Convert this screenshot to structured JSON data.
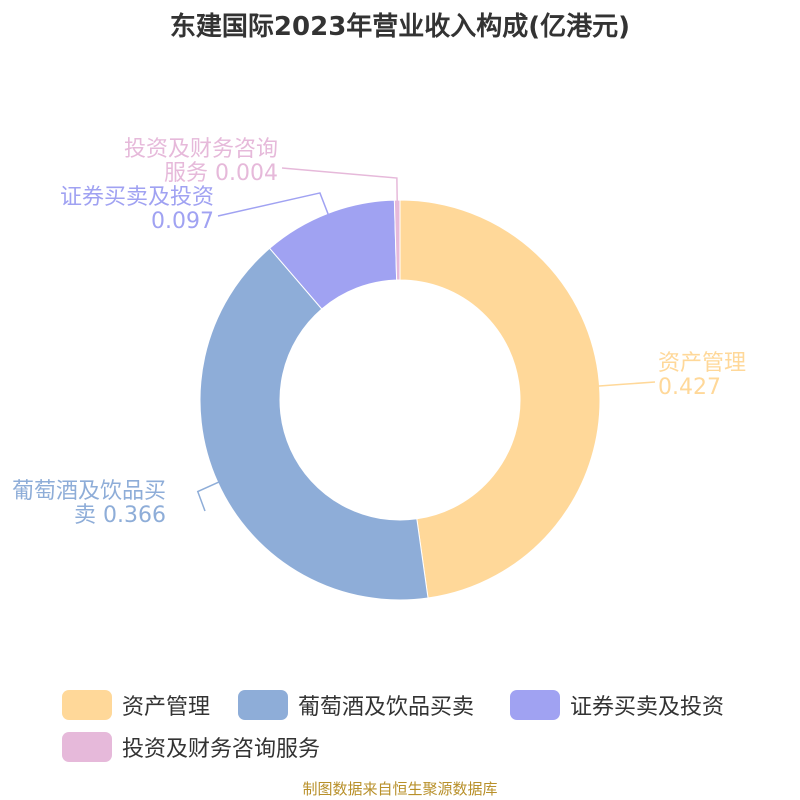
{
  "chart_data": {
    "type": "pie",
    "title": "东建国际2023年营业收入构成(亿港元)",
    "categories": [
      "资产管理",
      "葡萄酒及饮品买卖",
      "证券买卖及投资",
      "投资及财务咨询服务"
    ],
    "values": [
      0.427,
      0.366,
      0.097,
      0.004
    ],
    "value_labels": [
      "0.427",
      "0.366",
      "0.097",
      "0.004"
    ],
    "donut": true,
    "legend_position": "bottom",
    "colors": [
      "#FFD899",
      "#8EADD8",
      "#A0A2F2",
      "#E6B9DA"
    ]
  },
  "source": "制图数据来自恒生聚源数据库"
}
